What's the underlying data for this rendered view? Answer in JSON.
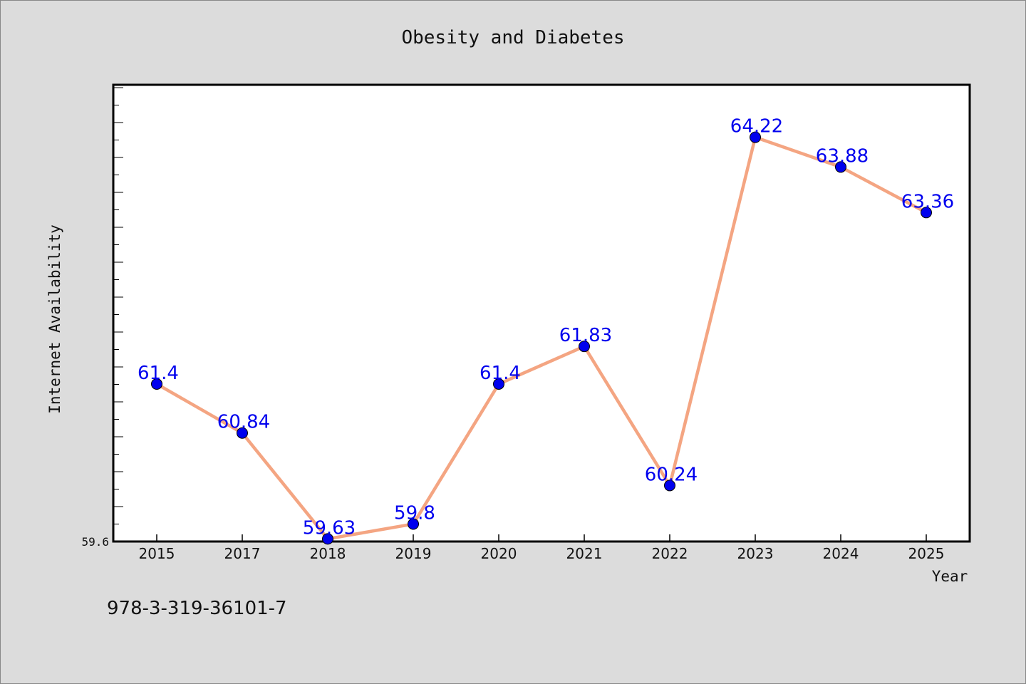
{
  "chart_data": {
    "type": "line",
    "title": "Obesity and Diabetes",
    "xlabel": "Year",
    "ylabel": "Internet Availability",
    "categories": [
      "2015",
      "2017",
      "2018",
      "2019",
      "2020",
      "2021",
      "2022",
      "2023",
      "2024",
      "2025"
    ],
    "series": [
      {
        "values": [
          61.4,
          60.84,
          59.63,
          59.8,
          61.4,
          61.83,
          60.24,
          64.22,
          63.88,
          63.36
        ],
        "labels": [
          "61.4",
          "60.84",
          "59.63",
          "59.8",
          "61.4",
          "61.83",
          "60.24",
          "64.22",
          "63.88",
          "63.36"
        ]
      }
    ],
    "ylim": [
      59.6,
      64.82
    ],
    "y_tick_labels": [
      "59.6"
    ],
    "grid": false,
    "legend": "none",
    "colors": {
      "line": "#f4a582",
      "marker": "#0000ee",
      "label": "#0000ee",
      "background": "#dcdcdc",
      "plot_bg": "#ffffff"
    }
  },
  "footer_text": "978-3-319-36101-7"
}
